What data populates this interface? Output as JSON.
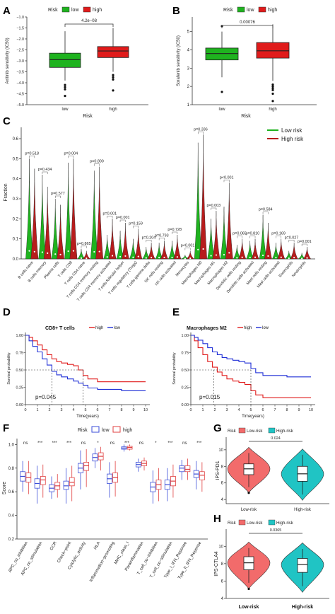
{
  "panels": {
    "A": {
      "label": "A",
      "legend_title": "Risk",
      "legend": [
        "low",
        "high"
      ],
      "ylabel": "Axitinib sensitivity (IC50)",
      "xlabel": "Risk",
      "pvalue": "4.2e−08",
      "yticks": [
        "−5.0",
        "−4.5",
        "−4.0",
        "−3.5",
        "−3.0",
        "−2.5",
        "−2.0",
        "−1.5",
        "−1.0"
      ],
      "categories": [
        "low",
        "high"
      ],
      "colors": {
        "low": "#1fb31f",
        "high": "#e01b1b"
      }
    },
    "B": {
      "label": "B",
      "legend_title": "Risk",
      "legend": [
        "low",
        "high"
      ],
      "ylabel": "Sorafenib sensitivity (IC50)",
      "xlabel": "Risk",
      "pvalue": "0.00076",
      "yticks": [
        "1",
        "2",
        "3",
        "4",
        "5"
      ],
      "categories": [
        "low",
        "high"
      ],
      "colors": {
        "low": "#1fb31f",
        "high": "#e01b1b"
      }
    },
    "C": {
      "label": "C",
      "ylabel": "Fraction",
      "legend": [
        "Low risk",
        "High risk"
      ],
      "colors": {
        "low": "#1fb31f",
        "high": "#b71c1c"
      },
      "yticks": [
        "0.0",
        "0.1",
        "0.2",
        "0.3",
        "0.4",
        "0.5",
        "0.6"
      ]
    },
    "D": {
      "label": "D",
      "title": "CD8+ T cells",
      "legend": [
        "high",
        "low"
      ],
      "ylabel": "Survival probability",
      "xlabel": "Time(years)",
      "pvalue": "p=0.045",
      "xticks": [
        "0",
        "1",
        "2",
        "3",
        "4",
        "5",
        "6",
        "7",
        "8",
        "9",
        "10"
      ],
      "yticks": [
        "0.00",
        "0.25",
        "0.50",
        "0.75",
        "1.00"
      ],
      "colors": {
        "high": "#e01b1b",
        "low": "#1f2fd6"
      }
    },
    "E": {
      "label": "E",
      "title": "Macrophages M2",
      "legend": [
        "high",
        "low"
      ],
      "ylabel": "Survival probability",
      "xlabel": "Time(years)",
      "pvalue": "p=0.015",
      "xticks": [
        "0",
        "1",
        "2",
        "3",
        "4",
        "5",
        "6",
        "7",
        "8",
        "9",
        "10"
      ],
      "yticks": [
        "0.00",
        "0.25",
        "0.50",
        "0.75",
        "1.00"
      ],
      "colors": {
        "high": "#e01b1b",
        "low": "#1f2fd6"
      }
    },
    "F": {
      "label": "F",
      "legend_title": "Risk",
      "legend": [
        "low",
        "high"
      ],
      "ylabel": "Score",
      "yticks": [
        "0.2",
        "0.4",
        "0.6",
        "0.8",
        "1.0"
      ],
      "colors": {
        "low": "#3b4ed8",
        "high": "#e04040"
      }
    },
    "G": {
      "label": "G",
      "legend_title": "Risk",
      "legend": [
        "Low-risk",
        "High-risk"
      ],
      "ylabel": "IPS-PD1",
      "pvalue": "0.024",
      "categories": [
        "Low-risk",
        "High-risk"
      ],
      "yticks": [
        "4",
        "6",
        "8",
        "10"
      ],
      "colors": {
        "low": "#f26b6b",
        "high": "#20c4c4"
      }
    },
    "H": {
      "label": "H",
      "legend_title": "Risk",
      "legend": [
        "Low-risk",
        "High-risk"
      ],
      "ylabel": "IPS-CTLA4",
      "pvalue": "0.0365",
      "categories": [
        "Low-risk",
        "High-risk"
      ],
      "yticks": [
        "4",
        "6",
        "8",
        "10"
      ],
      "colors": {
        "low": "#f26b6b",
        "high": "#20c4c4"
      }
    }
  },
  "chart_data": [
    {
      "id": "A",
      "type": "box",
      "categories": [
        "low",
        "high"
      ],
      "stats": [
        {
          "q1": -3.3,
          "med": -2.95,
          "q3": -2.65,
          "lo": -3.9,
          "hi": -1.65,
          "out": [
            -4.1,
            -4.2,
            -4.3,
            -4.6
          ]
        },
        {
          "q1": -2.85,
          "med": -2.55,
          "q3": -2.35,
          "lo": -3.5,
          "hi": -1.5,
          "out": [
            -3.65,
            -3.75,
            -3.85,
            -4.35
          ]
        }
      ],
      "ylim": [
        -5.0,
        -1.0
      ]
    },
    {
      "id": "B",
      "type": "box",
      "categories": [
        "low",
        "high"
      ],
      "stats": [
        {
          "q1": 3.45,
          "med": 3.8,
          "q3": 4.1,
          "lo": 2.5,
          "hi": 5.0,
          "out": [
            5.3,
            1.7
          ]
        },
        {
          "q1": 3.55,
          "med": 3.95,
          "q3": 4.4,
          "lo": 2.3,
          "hi": 5.4,
          "out": [
            2.1,
            2.0,
            1.9,
            1.8,
            1.6,
            1.2
          ]
        }
      ],
      "ylim": [
        1,
        5.8
      ]
    },
    {
      "id": "C",
      "type": "violin",
      "categories": [
        "B cells naive",
        "B cells memory",
        "Plasma cells",
        "T cells CD8",
        "T cells CD4 naive",
        "T cells CD4 memory resting",
        "T cells CD4 memory activated",
        "T cells follicular helper",
        "T cells regulatory (Tregs)",
        "T cells gamma delta",
        "NK cells resting",
        "NK cells activated",
        "Monocytes",
        "Macrophages M0",
        "Macrophages M1",
        "Macrophages M2",
        "Dendritic cells resting",
        "Dendritic cells activated",
        "Mast cells resting",
        "Mast cells activated",
        "Eosinophils",
        "Neutrophils"
      ],
      "pvalues": [
        "p=0.518",
        "p=0.434",
        "p=0.577",
        "p=0.004",
        "p=0.865",
        "p=0.800",
        "p=0.001",
        "p=0.001",
        "p=0.159",
        "p=0.204",
        "p=0.793",
        "p=0.728",
        "p<0.001",
        "p=0.336",
        "p=0.003",
        "p<0.001",
        "p=0.065",
        "p=0.810",
        "p=0.584",
        "p=0.169",
        "p=0.027",
        "p=0.001"
      ],
      "max_low": [
        0.5,
        0.42,
        0.3,
        0.48,
        0.05,
        0.44,
        0.12,
        0.14,
        0.1,
        0.06,
        0.08,
        0.09,
        0.02,
        0.58,
        0.2,
        0.26,
        0.07,
        0.09,
        0.22,
        0.08,
        0.04,
        0.03
      ],
      "max_high": [
        0.45,
        0.36,
        0.27,
        0.5,
        0.04,
        0.46,
        0.2,
        0.18,
        0.15,
        0.08,
        0.09,
        0.12,
        0.04,
        0.62,
        0.24,
        0.38,
        0.1,
        0.1,
        0.18,
        0.1,
        0.08,
        0.06
      ],
      "ylim": [
        0,
        0.6
      ]
    },
    {
      "id": "D",
      "type": "line",
      "series": [
        {
          "name": "high",
          "x": [
            0,
            0.3,
            0.6,
            1,
            1.4,
            1.8,
            2.2,
            2.6,
            3,
            3.5,
            4,
            4.4,
            4.8,
            5.2,
            6,
            7,
            8,
            9,
            10
          ],
          "y": [
            1,
            0.97,
            0.92,
            0.86,
            0.79,
            0.72,
            0.66,
            0.62,
            0.6,
            0.58,
            0.56,
            0.5,
            0.42,
            0.37,
            0.33,
            0.33,
            0.33,
            0.33,
            0.33
          ]
        },
        {
          "name": "low",
          "x": [
            0,
            0.3,
            0.6,
            1,
            1.4,
            1.8,
            2.2,
            2.6,
            3,
            3.5,
            4,
            4.4,
            4.8,
            5.2,
            6,
            7,
            8,
            9,
            10
          ],
          "y": [
            1,
            0.92,
            0.84,
            0.76,
            0.66,
            0.57,
            0.48,
            0.43,
            0.4,
            0.37,
            0.34,
            0.31,
            0.28,
            0.24,
            0.22,
            0.22,
            0.2,
            0.2,
            0.2
          ]
        }
      ],
      "xlim": [
        0,
        10
      ],
      "ylim": [
        0,
        1
      ]
    },
    {
      "id": "E",
      "type": "line",
      "series": [
        {
          "name": "high",
          "x": [
            0,
            0.3,
            0.6,
            1,
            1.4,
            1.8,
            2.2,
            2.6,
            3,
            3.5,
            4,
            4.5,
            5,
            5.4,
            6,
            7,
            8,
            9,
            10
          ],
          "y": [
            1,
            0.92,
            0.82,
            0.72,
            0.62,
            0.54,
            0.47,
            0.42,
            0.37,
            0.34,
            0.32,
            0.29,
            0.2,
            0.14,
            0.1,
            0.1,
            0.1,
            0.1,
            0.1
          ]
        },
        {
          "name": "low",
          "x": [
            0,
            0.3,
            0.6,
            1,
            1.4,
            1.8,
            2.2,
            2.6,
            3,
            3.5,
            4,
            4.5,
            5,
            5.4,
            6,
            7,
            8,
            9,
            10
          ],
          "y": [
            1,
            0.97,
            0.93,
            0.88,
            0.82,
            0.76,
            0.72,
            0.68,
            0.66,
            0.64,
            0.62,
            0.6,
            0.52,
            0.46,
            0.42,
            0.42,
            0.4,
            0.4,
            0.4
          ]
        }
      ],
      "xlim": [
        0,
        10
      ],
      "ylim": [
        0,
        1
      ]
    },
    {
      "id": "F",
      "type": "box",
      "categories": [
        "APC_co_inhibition",
        "APC_co_stimulation",
        "CCR",
        "Check−point",
        "Cytolytic_activity",
        "HLA",
        "Inflammation−promoting",
        "MHC_class_I",
        "Parainflammation",
        "T_cell_co−inhibition",
        "T_cell_co−stimulation",
        "Type_I_IFN_Reponse",
        "Type_II_IFN_Reponse"
      ],
      "signif": [
        "ns",
        "***",
        "***",
        "***",
        "ns",
        "*",
        "ns",
        "***",
        "ns",
        "*",
        "***",
        "ns",
        "***"
      ],
      "low": [
        {
          "q1": 0.69,
          "med": 0.73,
          "q3": 0.77,
          "lo": 0.6,
          "hi": 0.86
        },
        {
          "q1": 0.63,
          "med": 0.67,
          "q3": 0.71,
          "lo": 0.5,
          "hi": 0.82
        },
        {
          "q1": 0.6,
          "med": 0.63,
          "q3": 0.66,
          "lo": 0.54,
          "hi": 0.73
        },
        {
          "q1": 0.62,
          "med": 0.65,
          "q3": 0.69,
          "lo": 0.5,
          "hi": 0.8
        },
        {
          "q1": 0.76,
          "med": 0.8,
          "q3": 0.84,
          "lo": 0.62,
          "hi": 0.95
        },
        {
          "q1": 0.86,
          "med": 0.89,
          "q3": 0.92,
          "lo": 0.8,
          "hi": 0.97
        },
        {
          "q1": 0.67,
          "med": 0.71,
          "q3": 0.75,
          "lo": 0.55,
          "hi": 0.85
        },
        {
          "q1": 0.96,
          "med": 0.97,
          "q3": 0.98,
          "lo": 0.94,
          "hi": 1.0
        },
        {
          "q1": 0.81,
          "med": 0.83,
          "q3": 0.85,
          "lo": 0.77,
          "hi": 0.88
        },
        {
          "q1": 0.6,
          "med": 0.64,
          "q3": 0.68,
          "lo": 0.5,
          "hi": 0.78
        },
        {
          "q1": 0.62,
          "med": 0.66,
          "q3": 0.7,
          "lo": 0.52,
          "hi": 0.8
        },
        {
          "q1": 0.77,
          "med": 0.8,
          "q3": 0.82,
          "lo": 0.7,
          "hi": 0.87
        },
        {
          "q1": 0.72,
          "med": 0.75,
          "q3": 0.78,
          "lo": 0.62,
          "hi": 0.86
        }
      ],
      "high": [
        {
          "q1": 0.68,
          "med": 0.72,
          "q3": 0.76,
          "lo": 0.58,
          "hi": 0.86
        },
        {
          "q1": 0.66,
          "med": 0.7,
          "q3": 0.73,
          "lo": 0.55,
          "hi": 0.83
        },
        {
          "q1": 0.62,
          "med": 0.65,
          "q3": 0.68,
          "lo": 0.55,
          "hi": 0.75
        },
        {
          "q1": 0.65,
          "med": 0.68,
          "q3": 0.72,
          "lo": 0.52,
          "hi": 0.82
        },
        {
          "q1": 0.78,
          "med": 0.82,
          "q3": 0.85,
          "lo": 0.64,
          "hi": 0.96
        },
        {
          "q1": 0.87,
          "med": 0.9,
          "q3": 0.93,
          "lo": 0.78,
          "hi": 0.98
        },
        {
          "q1": 0.68,
          "med": 0.72,
          "q3": 0.76,
          "lo": 0.56,
          "hi": 0.86
        },
        {
          "q1": 0.96,
          "med": 0.975,
          "q3": 0.985,
          "lo": 0.95,
          "hi": 1.0
        },
        {
          "q1": 0.82,
          "med": 0.84,
          "q3": 0.86,
          "lo": 0.78,
          "hi": 0.89
        },
        {
          "q1": 0.62,
          "med": 0.66,
          "q3": 0.7,
          "lo": 0.52,
          "hi": 0.8
        },
        {
          "q1": 0.65,
          "med": 0.69,
          "q3": 0.73,
          "lo": 0.55,
          "hi": 0.83
        },
        {
          "q1": 0.77,
          "med": 0.79,
          "q3": 0.82,
          "lo": 0.7,
          "hi": 0.88
        },
        {
          "q1": 0.7,
          "med": 0.74,
          "q3": 0.77,
          "lo": 0.6,
          "hi": 0.85
        }
      ],
      "ylim": [
        0.2,
        1.05
      ]
    },
    {
      "id": "G",
      "type": "violin",
      "categories": [
        "Low-risk",
        "High-risk"
      ],
      "stats": [
        {
          "q1": 7.0,
          "med": 7.7,
          "q3": 8.3,
          "lo": 5.5,
          "hi": 9.6,
          "out": [
            4.8
          ]
        },
        {
          "q1": 6.2,
          "med": 7.1,
          "q3": 8.0,
          "lo": 4.6,
          "hi": 9.4,
          "out": []
        }
      ],
      "ylim": [
        3.5,
        10.5
      ]
    },
    {
      "id": "H",
      "type": "violin",
      "categories": [
        "Low-risk",
        "High-risk"
      ],
      "stats": [
        {
          "q1": 7.3,
          "med": 8.1,
          "q3": 8.8,
          "lo": 5.8,
          "hi": 9.8,
          "out": [
            5.1
          ]
        },
        {
          "q1": 7.0,
          "med": 7.9,
          "q3": 8.6,
          "lo": 5.4,
          "hi": 9.7,
          "out": []
        }
      ],
      "ylim": [
        4,
        11
      ]
    }
  ]
}
